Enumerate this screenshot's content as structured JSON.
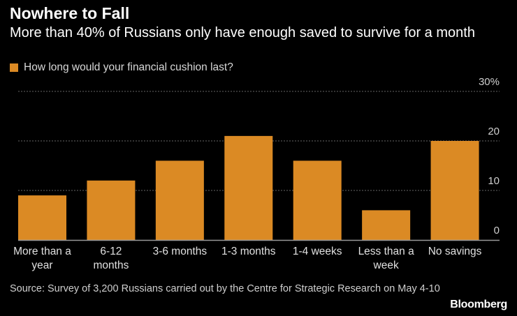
{
  "title": "Nowhere to Fall",
  "subtitle": "More than 40% of Russians only have enough saved to survive for a month",
  "source": "Source: Survey of 3,200 Russians carried out by the Centre for Strategic Research on May 4-10",
  "logo": "Bloomberg",
  "colors": {
    "bar": "#DB8A24",
    "grid": "#666666",
    "background": "#000000"
  },
  "chart_data": {
    "type": "bar",
    "title": "Nowhere to Fall",
    "legend": [
      "How long would your financial cushion last?"
    ],
    "categories": [
      [
        "More than a",
        "year"
      ],
      [
        "6-12",
        "months"
      ],
      [
        "3-6 months"
      ],
      [
        "1-3 months"
      ],
      [
        "1-4 weeks"
      ],
      [
        "Less than a",
        "week"
      ],
      [
        "No savings"
      ]
    ],
    "values": [
      9,
      12,
      16,
      21,
      16,
      6,
      20
    ],
    "ylim": [
      0,
      30
    ],
    "yticks": [
      {
        "v": 0,
        "label": "0"
      },
      {
        "v": 10,
        "label": "10"
      },
      {
        "v": 20,
        "label": "20"
      },
      {
        "v": 30,
        "label": "30%"
      }
    ],
    "grid": true,
    "legend_position": "top-left",
    "y_axis_side": "right"
  }
}
